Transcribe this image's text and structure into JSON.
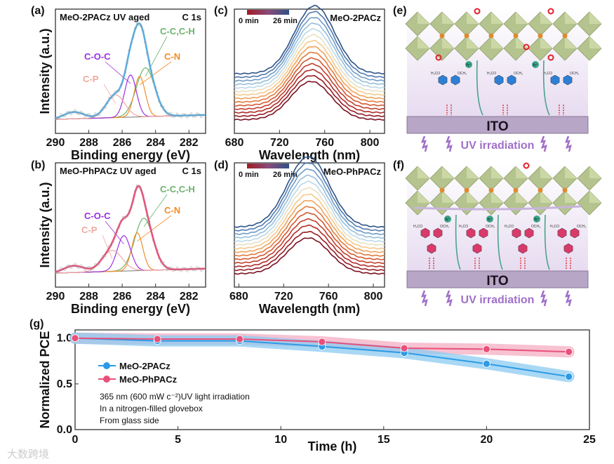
{
  "panels": {
    "a": "(a)",
    "b": "(b)",
    "c": "(c)",
    "d": "(d)",
    "e": "(e)",
    "f": "(f)",
    "g": "(g)"
  },
  "chart_data": [
    {
      "type": "line",
      "id": "a",
      "title": "MeO-2PACz UV aged",
      "corner_label": "C 1s",
      "xlabel": "Binding energy (eV)",
      "ylabel": "Intensity (a.u.)",
      "xlim": [
        290,
        281
      ],
      "xticks": [
        "290",
        "288",
        "286",
        "284",
        "282"
      ],
      "components": [
        {
          "name": "C-C,C-H",
          "center": 284.6,
          "height": 0.58,
          "sigma": 0.55,
          "color": "#6db36d"
        },
        {
          "name": "C-N",
          "center": 284.95,
          "height": 0.48,
          "sigma": 0.33,
          "color": "#f28c28"
        },
        {
          "name": "C-O-C",
          "center": 285.5,
          "height": 0.5,
          "sigma": 0.35,
          "color": "#9b30e0"
        },
        {
          "name": "C-P",
          "center": 286.4,
          "height": 0.27,
          "sigma": 0.55,
          "color": "#f0a8a0"
        }
      ],
      "envelope_color": "#5aaee0"
    },
    {
      "type": "line",
      "id": "b",
      "title": "MeO-PhPACz UV aged",
      "corner_label": "C 1s",
      "xlabel": "Binding energy (eV)",
      "ylabel": "Intensity (a.u.)",
      "xlim": [
        290,
        281
      ],
      "xticks": [
        "290",
        "288",
        "286",
        "284",
        "282"
      ],
      "components": [
        {
          "name": "C-C,C-H",
          "center": 284.7,
          "height": 0.62,
          "sigma": 0.55,
          "color": "#6db36d"
        },
        {
          "name": "C-N",
          "center": 285.1,
          "height": 0.45,
          "sigma": 0.33,
          "color": "#f28c28"
        },
        {
          "name": "C-O-C",
          "center": 285.9,
          "height": 0.42,
          "sigma": 0.4,
          "color": "#9b30e0"
        },
        {
          "name": "C-P",
          "center": 286.6,
          "height": 0.25,
          "sigma": 0.6,
          "color": "#f0a8a0"
        }
      ],
      "envelope_color": "#e8507a"
    },
    {
      "type": "line",
      "id": "c",
      "title": "MeO-2PACz",
      "xlabel": "Wavelength (nm)",
      "xlim": [
        680,
        813
      ],
      "xticks": [
        "680",
        "720",
        "760",
        "800"
      ],
      "colorbar": [
        "0 min",
        "26 min"
      ],
      "curves": 14,
      "peak_nm": 748,
      "fwhm_nm": 42,
      "peak_start": 1.0,
      "peak_end": 1.55
    },
    {
      "type": "line",
      "id": "d",
      "title": "MeO-PhPACz",
      "xlabel": "Wavelength (nm)",
      "xlim": [
        676,
        810
      ],
      "xticks": [
        "680",
        "720",
        "760",
        "800"
      ],
      "colorbar": [
        "0 min",
        "26 min"
      ],
      "curves": 14,
      "peak_nm": 742,
      "fwhm_nm": 44,
      "peak_start": 1.0,
      "peak_end": 1.6
    },
    {
      "type": "line",
      "id": "g",
      "xlabel": "Time (h)",
      "ylabel": "Normalized PCE",
      "xlim": [
        0,
        25
      ],
      "ylim": [
        0,
        1.09
      ],
      "xticks": [
        "0",
        "5",
        "10",
        "15",
        "20",
        "25"
      ],
      "yticks": [
        "0.0",
        "0.5",
        "1.0"
      ],
      "x": [
        0,
        4,
        8,
        12,
        16,
        20,
        24
      ],
      "series": [
        {
          "name": "MeO-2PACz",
          "values": [
            1.0,
            0.97,
            0.97,
            0.91,
            0.84,
            0.72,
            0.58
          ],
          "color": "#2b9be6",
          "band": "#8ccbf0"
        },
        {
          "name": "MeO-PhPACz",
          "values": [
            1.0,
            0.99,
            0.99,
            0.96,
            0.89,
            0.88,
            0.85
          ],
          "color": "#e8507a",
          "band": "#f4aec2"
        }
      ],
      "annotations": [
        "365 nm (600 mW c⁻²)UV light irradiation",
        "In a nitrogen-filled glovebox",
        "From glass side"
      ],
      "legend": "middle-left"
    }
  ],
  "schematic": {
    "ito": "ITO",
    "uv": "UV irradiation",
    "hole": "h⁺",
    "h3co": "H₃CO",
    "och3": "OCH₃"
  },
  "watermark": "大数跨境"
}
